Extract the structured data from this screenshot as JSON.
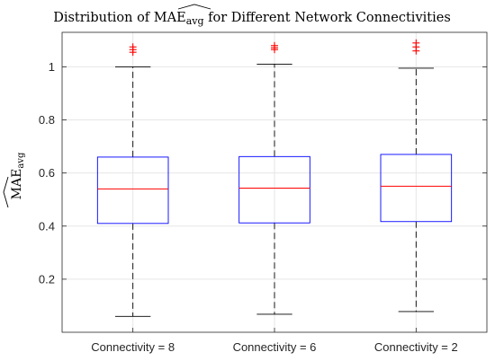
{
  "chart_data": {
    "type": "box",
    "title": {
      "prefix": "Distribution of ",
      "symbol": "MAE",
      "subscript": "avg",
      "suffix": " for Different Network Connectivities"
    },
    "ylabel": {
      "symbol": "MAE",
      "subscript": "avg"
    },
    "xlabel": "",
    "ylim": [
      0,
      1.13
    ],
    "yticks": [
      0.2,
      0.4,
      0.6,
      0.8,
      1
    ],
    "ytick_labels": [
      "0.2",
      "0.4",
      "0.6",
      "0.8",
      "1"
    ],
    "grid": true,
    "categories": [
      "Connectivity = 8",
      "Connectivity = 6",
      "Connectivity = 2"
    ],
    "boxes": [
      {
        "whisker_low": 0.06,
        "q1": 0.41,
        "median": 0.54,
        "q3": 0.66,
        "whisker_high": 1.0,
        "outliers": [
          1.055,
          1.065,
          1.075
        ]
      },
      {
        "whisker_low": 0.068,
        "q1": 0.412,
        "median": 0.543,
        "q3": 0.662,
        "whisker_high": 1.01,
        "outliers": [
          1.065,
          1.072,
          1.08
        ]
      },
      {
        "whisker_low": 0.078,
        "q1": 0.417,
        "median": 0.55,
        "q3": 0.67,
        "whisker_high": 0.995,
        "outliers": [
          1.06,
          1.075,
          1.09
        ]
      }
    ],
    "colors": {
      "box": "#0000ff",
      "median": "#ff0000",
      "whisker": "#000000",
      "outlier": "#ff0000",
      "grid": "#e6e6e6",
      "axis": "#262626"
    }
  }
}
